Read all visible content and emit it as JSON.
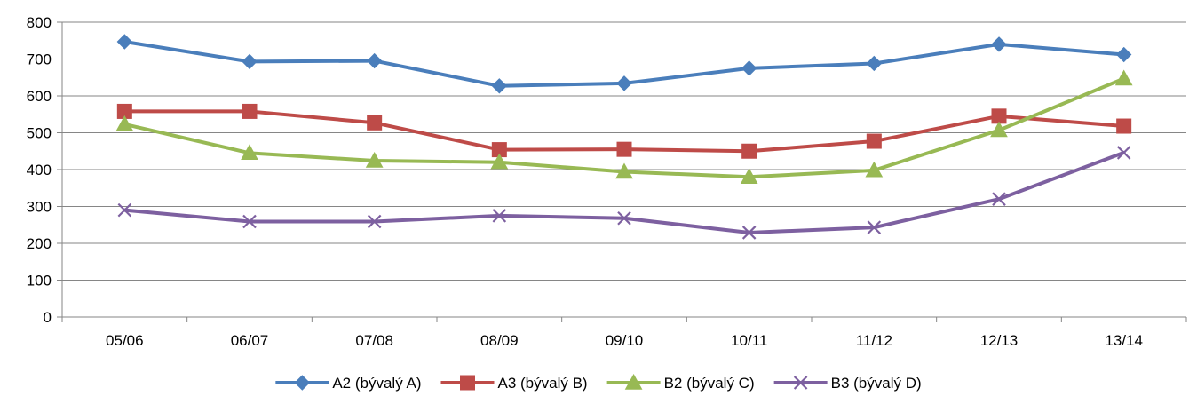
{
  "chart_data": {
    "type": "line",
    "title": "",
    "xlabel": "",
    "ylabel": "",
    "categories": [
      "05/06",
      "06/07",
      "07/08",
      "08/09",
      "09/10",
      "10/11",
      "11/12",
      "12/13",
      "13/14"
    ],
    "ylim": [
      0,
      800
    ],
    "yticks": [
      0,
      100,
      200,
      300,
      400,
      500,
      600,
      700,
      800
    ],
    "grid": "horizontal",
    "legend_position": "bottom",
    "series": [
      {
        "name": "A2 (bývalý A)",
        "color": "#4A7EBB",
        "marker": "diamond",
        "values": [
          747,
          693,
          695,
          627,
          634,
          675,
          688,
          740,
          712
        ]
      },
      {
        "name": "A3 (bývalý B)",
        "color": "#BE4B48",
        "marker": "square",
        "values": [
          558,
          558,
          527,
          454,
          455,
          450,
          477,
          545,
          518
        ]
      },
      {
        "name": "B2 (bývalý C)",
        "color": "#98B954",
        "marker": "triangle",
        "values": [
          523,
          445,
          424,
          420,
          394,
          380,
          398,
          507,
          647
        ]
      },
      {
        "name": "B3 (bývalý D)",
        "color": "#7D60A0",
        "marker": "x",
        "values": [
          290,
          259,
          259,
          275,
          268,
          229,
          243,
          320,
          446
        ]
      }
    ]
  }
}
